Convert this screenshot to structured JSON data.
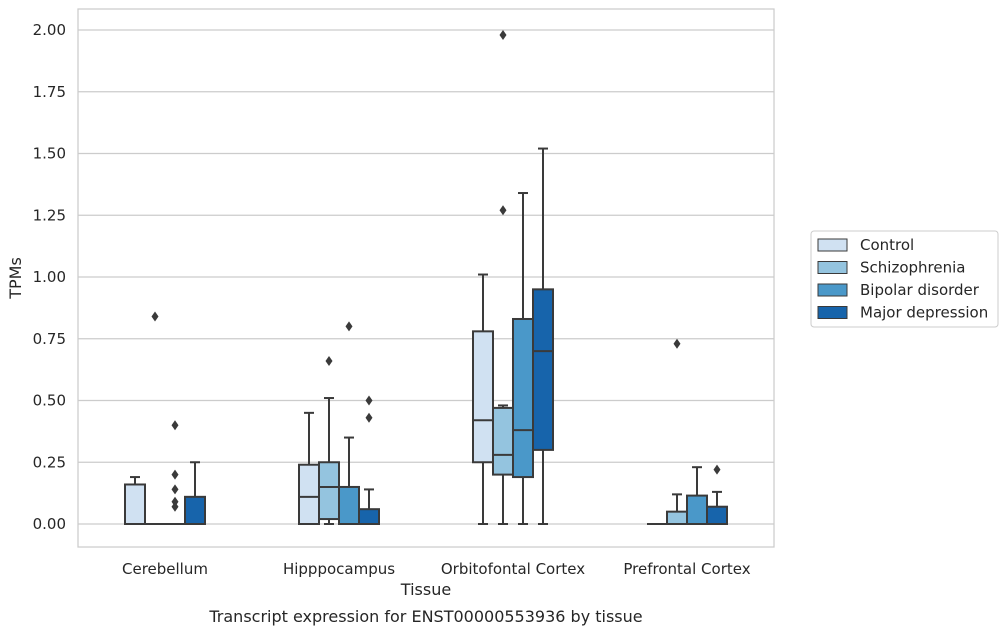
{
  "chart_data": {
    "type": "box",
    "title": "",
    "caption": "Transcript expression for ENST00000553936 by tissue",
    "xlabel": "Tissue",
    "ylabel": "TPMs",
    "ylim": [
      -0.1,
      2.08
    ],
    "yticks": [
      0.0,
      0.25,
      0.5,
      0.75,
      1.0,
      1.25,
      1.5,
      1.75,
      2.0
    ],
    "ytick_labels": [
      "0.00",
      "0.25",
      "0.50",
      "0.75",
      "1.00",
      "1.25",
      "1.50",
      "1.75",
      "2.00"
    ],
    "grid": "horizontal",
    "legend_position": "center-right-outside",
    "categories": [
      "Cerebellum",
      "Hipppocampus",
      "Orbitofontal Cortex",
      "Prefrontal Cortex"
    ],
    "series": [
      {
        "name": "Control",
        "color": "#d0e1f2",
        "boxes": [
          {
            "whislo": 0.0,
            "q1": 0.0,
            "med": 0.0,
            "q3": 0.16,
            "whishi": 0.19,
            "fliers": []
          },
          {
            "whislo": 0.0,
            "q1": 0.0,
            "med": 0.11,
            "q3": 0.24,
            "whishi": 0.45,
            "fliers": []
          },
          {
            "whislo": 0.0,
            "q1": 0.25,
            "med": 0.42,
            "q3": 0.78,
            "whishi": 1.01,
            "fliers": []
          },
          {
            "whislo": 0.0,
            "q1": 0.0,
            "med": 0.0,
            "q3": 0.0,
            "whishi": 0.0,
            "fliers": []
          }
        ]
      },
      {
        "name": "Schizophrenia",
        "color": "#94c4df",
        "boxes": [
          {
            "whislo": 0.0,
            "q1": 0.0,
            "med": 0.0,
            "q3": 0.0,
            "whishi": 0.0,
            "fliers": [
              0.84
            ]
          },
          {
            "whislo": 0.0,
            "q1": 0.02,
            "med": 0.15,
            "q3": 0.25,
            "whishi": 0.51,
            "fliers": [
              0.66
            ]
          },
          {
            "whislo": 0.0,
            "q1": 0.2,
            "med": 0.28,
            "q3": 0.47,
            "whishi": 0.48,
            "fliers": [
              1.27,
              1.98
            ]
          },
          {
            "whislo": 0.0,
            "q1": 0.0,
            "med": 0.0,
            "q3": 0.05,
            "whishi": 0.12,
            "fliers": [
              0.73
            ]
          }
        ]
      },
      {
        "name": "Bipolar disorder",
        "color": "#4a98c9",
        "boxes": [
          {
            "whislo": 0.0,
            "q1": 0.0,
            "med": 0.0,
            "q3": 0.0,
            "whishi": 0.0,
            "fliers": [
              0.4,
              0.2,
              0.14,
              0.09,
              0.07
            ]
          },
          {
            "whislo": 0.0,
            "q1": 0.0,
            "med": 0.0,
            "q3": 0.15,
            "whishi": 0.35,
            "fliers": [
              0.8
            ]
          },
          {
            "whislo": 0.0,
            "q1": 0.19,
            "med": 0.38,
            "q3": 0.83,
            "whishi": 1.34,
            "fliers": []
          },
          {
            "whislo": 0.0,
            "q1": 0.0,
            "med": 0.0,
            "q3": 0.115,
            "whishi": 0.23,
            "fliers": []
          }
        ]
      },
      {
        "name": "Major depression",
        "color": "#1764ab",
        "boxes": [
          {
            "whislo": 0.0,
            "q1": 0.0,
            "med": 0.0,
            "q3": 0.11,
            "whishi": 0.25,
            "fliers": []
          },
          {
            "whislo": 0.0,
            "q1": 0.0,
            "med": 0.0,
            "q3": 0.06,
            "whishi": 0.14,
            "fliers": [
              0.5,
              0.43
            ]
          },
          {
            "whislo": 0.0,
            "q1": 0.3,
            "med": 0.7,
            "q3": 0.95,
            "whishi": 1.52,
            "fliers": []
          },
          {
            "whislo": 0.0,
            "q1": 0.0,
            "med": 0.0,
            "q3": 0.07,
            "whishi": 0.13,
            "fliers": [
              0.22
            ]
          }
        ]
      }
    ]
  }
}
